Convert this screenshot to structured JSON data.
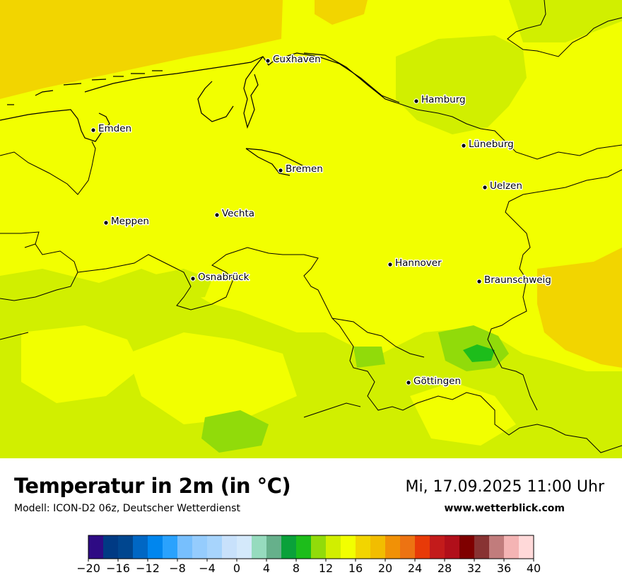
{
  "title": "Temperatur in 2m (in °C)",
  "subtitle": "Modell: ICON-D2 06z, Deutscher Wetterdienst",
  "datetime": "Mi, 17.09.2025 11:00 Uhr",
  "website": "www.wetterblick.com",
  "cities": [
    {
      "name": "Cuxhaven"
    },
    {
      "name": "Hamburg"
    },
    {
      "name": "Emden"
    },
    {
      "name": "Lüneburg"
    },
    {
      "name": "Bremen"
    },
    {
      "name": "Uelzen"
    },
    {
      "name": "Vechta"
    },
    {
      "name": "Meppen"
    },
    {
      "name": "Hannover"
    },
    {
      "name": "Osnabrück"
    },
    {
      "name": "Braunschweig"
    },
    {
      "name": "Göttingen"
    }
  ],
  "legend": {
    "colors": [
      "#2e0b84",
      "#003a84",
      "#00468f",
      "#0067c4",
      "#0086ee",
      "#2aa2fd",
      "#77bffd",
      "#95ccfd",
      "#a7d4fc",
      "#c8e1fb",
      "#d4e9fb",
      "#96dbbe",
      "#66b08b",
      "#0aa13a",
      "#1dbd1b",
      "#91db0a",
      "#d1ef00",
      "#f2ff00",
      "#f2d500",
      "#f2bd00",
      "#f19106",
      "#ed7312",
      "#e83a08",
      "#c31b1b",
      "#b10f1a",
      "#7f0000",
      "#883333",
      "#c17c7c",
      "#f4b4b4",
      "#ffd9d9"
    ],
    "tick_labels": [
      "−20",
      "−16",
      "−12",
      "−8",
      "−4",
      "0",
      "4",
      "8",
      "12",
      "16",
      "20",
      "24",
      "28",
      "32",
      "36",
      "40"
    ]
  }
}
